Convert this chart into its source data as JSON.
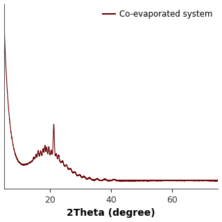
{
  "line_color": "#6B0000",
  "line_width": 0.8,
  "legend_label": "Co-evaporated system",
  "xlabel": "2Theta (degree)",
  "xlabel_fontsize": 10,
  "xlabel_fontweight": "bold",
  "xlim": [
    5,
    75
  ],
  "xticks": [
    20,
    40,
    60
  ],
  "legend_fontsize": 8.5,
  "background_color": "#ffffff",
  "figure_size": [
    3.2,
    3.2
  ],
  "dpi": 100
}
